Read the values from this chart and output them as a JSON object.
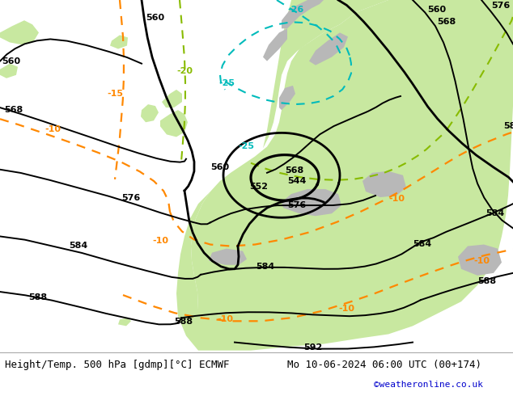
{
  "title_left": "Height/Temp. 500 hPa [gdmp][°C] ECMWF",
  "title_right": "Mo 10-06-2024 06:00 UTC (00+174)",
  "credit": "©weatheronline.co.uk",
  "bg_sea": "#e8e8e8",
  "bg_land_green": "#c8e8a0",
  "bg_land_gray": "#b8b8b8",
  "c_black": "#000000",
  "c_orange": "#ff8800",
  "c_green": "#88bb00",
  "c_cyan": "#00bbbb",
  "c_credit": "#0000cc",
  "figsize": [
    6.34,
    4.9
  ],
  "dpi": 100
}
